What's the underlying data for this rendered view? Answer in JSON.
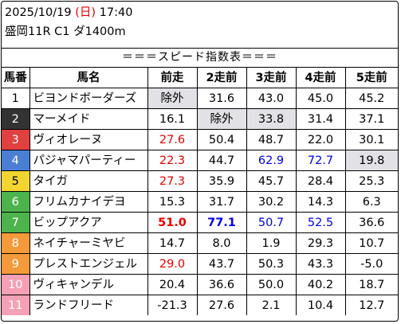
{
  "header": {
    "date": "2025/10/19",
    "dow_open": "(",
    "dow": "日",
    "dow_close": ")",
    "time": "17:40",
    "race": "盛岡11R C1 ダ1400m"
  },
  "table_title": "＝＝＝スピード指数表＝＝＝",
  "columns": [
    "馬番",
    "馬名",
    "前走",
    "2走前",
    "3走前",
    "4走前",
    "5走前"
  ],
  "colors": {
    "gray_cell": "#e1e1e6",
    "red_text": "#e60000",
    "blue_text": "#0000e6",
    "frame_colors": {
      "1": "#ffffff",
      "2": "#333333",
      "3": "#e04040",
      "4": "#4a7fd4",
      "5": "#f2d530",
      "6": "#4db34d",
      "7": "#4db34d",
      "8": "#f59a3a",
      "9": "#f59a3a",
      "10": "#f5a0b4",
      "11": "#f5a0b4"
    }
  },
  "horses": [
    {
      "num": "1",
      "frame": 1,
      "name": "ビヨンドボーダーズ",
      "values": [
        "除外",
        "31.6",
        "43.0",
        "45.0",
        "45.2"
      ],
      "styles": [
        "gray",
        "",
        "",
        "",
        ""
      ]
    },
    {
      "num": "2",
      "frame": 2,
      "name": "マーメイド",
      "values": [
        "16.1",
        "除外",
        "33.8",
        "31.4",
        "37.1"
      ],
      "styles": [
        "",
        "gray",
        "gray",
        "",
        ""
      ]
    },
    {
      "num": "3",
      "frame": 3,
      "name": "ヴィオレーヌ",
      "values": [
        "27.6",
        "50.4",
        "48.7",
        "22.0",
        "30.1"
      ],
      "styles": [
        "red",
        "",
        "",
        "",
        ""
      ]
    },
    {
      "num": "4",
      "frame": 4,
      "name": "パジャマパーティー",
      "values": [
        "22.3",
        "44.7",
        "62.9",
        "72.7",
        "19.8"
      ],
      "styles": [
        "red",
        "",
        "blue",
        "blue",
        "gray"
      ]
    },
    {
      "num": "5",
      "frame": 5,
      "name": "タイガ",
      "values": [
        "27.3",
        "35.9",
        "45.7",
        "28.4",
        "25.3"
      ],
      "styles": [
        "red",
        "",
        "",
        "",
        ""
      ]
    },
    {
      "num": "6",
      "frame": 6,
      "name": "フリムカナイデヨ",
      "values": [
        "15.3",
        "31.7",
        "30.2",
        "14.3",
        "6.3"
      ],
      "styles": [
        "",
        "",
        "",
        "",
        ""
      ]
    },
    {
      "num": "7",
      "frame": 7,
      "name": "ビップアクア",
      "values": [
        "51.0",
        "77.1",
        "50.7",
        "52.5",
        "36.6"
      ],
      "styles": [
        "red bold",
        "blue bold",
        "blue",
        "blue",
        ""
      ]
    },
    {
      "num": "8",
      "frame": 8,
      "name": "ネイチャーミヤビ",
      "values": [
        "14.7",
        "8.0",
        "1.9",
        "29.3",
        "10.7"
      ],
      "styles": [
        "",
        "",
        "",
        "",
        ""
      ]
    },
    {
      "num": "9",
      "frame": 9,
      "name": "プレストエンジェル",
      "values": [
        "29.0",
        "43.7",
        "50.3",
        "43.3",
        "-5.0"
      ],
      "styles": [
        "red",
        "",
        "",
        "",
        ""
      ]
    },
    {
      "num": "10",
      "frame": 10,
      "name": "ヴィキャンデル",
      "values": [
        "20.4",
        "36.6",
        "50.0",
        "40.2",
        "18.7"
      ],
      "styles": [
        "",
        "",
        "",
        "",
        ""
      ]
    },
    {
      "num": "11",
      "frame": 11,
      "name": "ランドフリード",
      "values": [
        "-21.3",
        "27.6",
        "2.1",
        "10.4",
        "12.7"
      ],
      "styles": [
        "",
        "",
        "",
        "",
        ""
      ]
    }
  ]
}
